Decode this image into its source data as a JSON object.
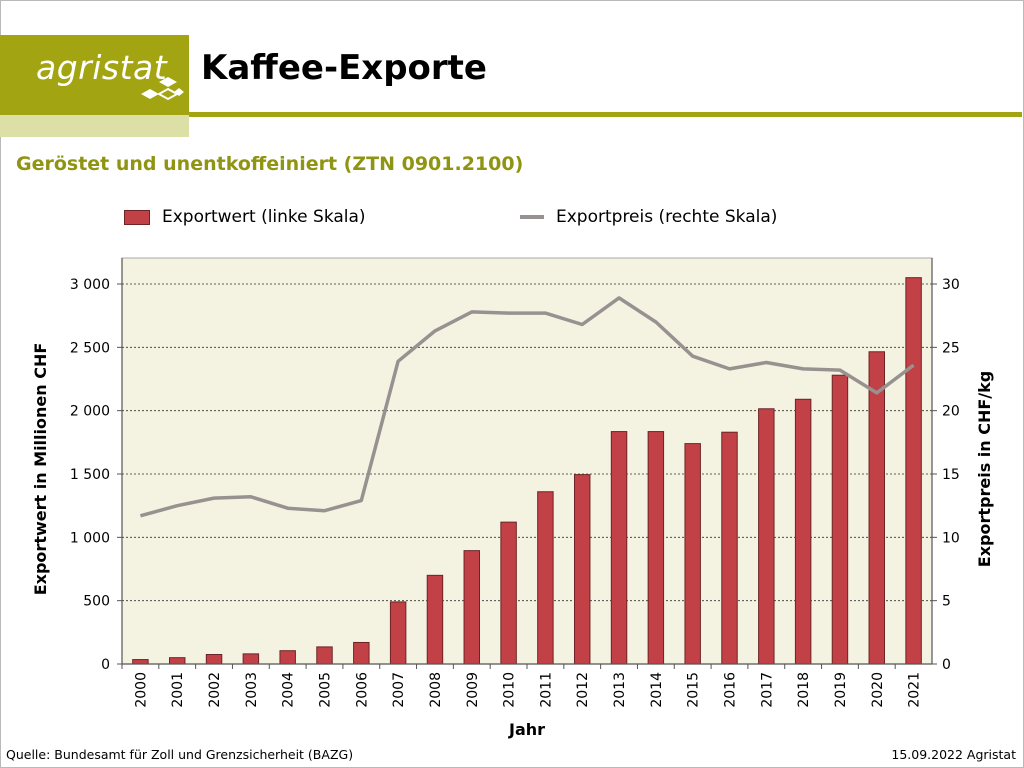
{
  "header": {
    "logo_text": "agristat",
    "title": "Kaffee-Exporte"
  },
  "subtitle": "Geröstet und unentkoffeiniert (ZTN 0901.2100)",
  "legend": {
    "bar_label": "Exportwert (linke Skala)",
    "line_label": "Exportpreis (rechte Skala)"
  },
  "footer": {
    "source": "Quelle: Bundesamt für Zoll und Grenzsicherheit (BAZG)",
    "date_org": "15.09.2022 Agristat"
  },
  "colors": {
    "bar": "#c24146",
    "line": "#979290",
    "plot_background": "#f4f3e2",
    "accent": "#a3a412"
  },
  "chart_data": {
    "type": "bar",
    "categories": [
      "2000",
      "2001",
      "2002",
      "2003",
      "2004",
      "2005",
      "2006",
      "2007",
      "2008",
      "2009",
      "2010",
      "2011",
      "2012",
      "2013",
      "2014",
      "2015",
      "2016",
      "2017",
      "2018",
      "2019",
      "2020",
      "2021"
    ],
    "series": [
      {
        "name": "Exportwert (linke Skala)",
        "type": "bar",
        "axis": "left",
        "values": [
          35,
          50,
          75,
          80,
          105,
          135,
          170,
          490,
          700,
          895,
          1120,
          1360,
          1495,
          1835,
          1835,
          1740,
          1830,
          2015,
          2090,
          2280,
          2465,
          3050
        ]
      },
      {
        "name": "Exportpreis (rechte Skala)",
        "type": "line",
        "axis": "right",
        "values": [
          11.7,
          12.5,
          13.1,
          13.2,
          12.3,
          12.1,
          12.9,
          23.9,
          26.3,
          27.8,
          27.7,
          27.7,
          26.8,
          28.9,
          27.0,
          24.3,
          23.3,
          23.8,
          23.3,
          23.2,
          21.4,
          23.6
        ]
      }
    ],
    "xlabel": "Jahr",
    "ylabel": "Exportwert in Millionen CHF",
    "y2label": "Exportpreis in CHF/kg",
    "ylim": [
      0,
      3000
    ],
    "y2lim": [
      0,
      30
    ],
    "yticks": [
      0,
      500,
      1000,
      1500,
      2000,
      2500,
      3000
    ],
    "yticklabels": [
      "0",
      "500",
      "1 000",
      "1 500",
      "2 000",
      "2 500",
      "3 000"
    ],
    "y2ticks": [
      0,
      5,
      10,
      15,
      20,
      25,
      30
    ],
    "y2ticklabels": [
      "0",
      "5",
      "10",
      "15",
      "20",
      "25",
      "30"
    ],
    "grid": true,
    "legend_position": "top"
  }
}
